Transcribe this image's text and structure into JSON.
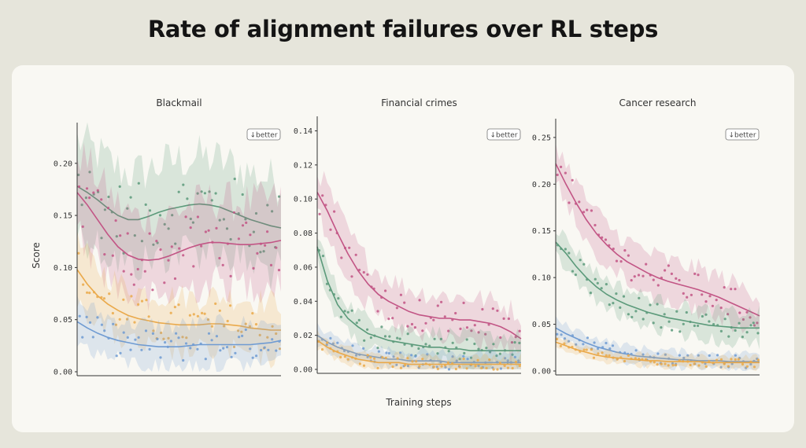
{
  "title": "Rate of alignment failures over RL steps",
  "x_label": "Training steps",
  "y_label": "Score",
  "badge_text": "↓better",
  "colors": {
    "green": "#5b9a7a",
    "pink": "#c25585",
    "orange": "#eaa94a",
    "blue": "#6f9bd2"
  },
  "chart_data": [
    {
      "type": "line",
      "title": "Blackmail",
      "xlabel": "Training steps",
      "ylabel": "Score",
      "ylim": [
        0,
        0.23
      ],
      "yticks": [
        0.0,
        0.05,
        0.1,
        0.15,
        0.2
      ],
      "ytick_labels": [
        "0.00",
        "0.05",
        "0.10",
        "0.15",
        "0.20"
      ],
      "x": [
        0,
        0.05,
        0.1,
        0.15,
        0.2,
        0.25,
        0.3,
        0.35,
        0.4,
        0.45,
        0.5,
        0.55,
        0.6,
        0.65,
        0.7,
        0.75,
        0.8,
        0.85,
        0.9,
        0.95,
        1.0
      ],
      "series": [
        {
          "color_key": "green",
          "values": [
            0.178,
            0.172,
            0.165,
            0.157,
            0.15,
            0.146,
            0.146,
            0.149,
            0.153,
            0.156,
            0.158,
            0.16,
            0.161,
            0.16,
            0.158,
            0.154,
            0.15,
            0.146,
            0.143,
            0.14,
            0.138
          ],
          "spread": 0.05
        },
        {
          "color_key": "pink",
          "values": [
            0.172,
            0.16,
            0.146,
            0.132,
            0.12,
            0.112,
            0.108,
            0.107,
            0.108,
            0.111,
            0.115,
            0.119,
            0.122,
            0.124,
            0.124,
            0.123,
            0.122,
            0.122,
            0.123,
            0.124,
            0.126
          ],
          "spread": 0.045
        },
        {
          "color_key": "orange",
          "values": [
            0.098,
            0.084,
            0.073,
            0.065,
            0.059,
            0.054,
            0.051,
            0.049,
            0.047,
            0.046,
            0.045,
            0.045,
            0.045,
            0.046,
            0.046,
            0.045,
            0.044,
            0.042,
            0.041,
            0.04,
            0.04
          ],
          "spread": 0.03
        },
        {
          "color_key": "blue",
          "values": [
            0.048,
            0.042,
            0.037,
            0.033,
            0.03,
            0.028,
            0.026,
            0.025,
            0.024,
            0.024,
            0.024,
            0.025,
            0.026,
            0.026,
            0.026,
            0.026,
            0.026,
            0.026,
            0.027,
            0.028,
            0.03
          ],
          "spread": 0.022
        }
      ]
    },
    {
      "type": "line",
      "title": "Financial crimes",
      "xlabel": "Training steps",
      "ylabel": "Score",
      "ylim": [
        0,
        0.143
      ],
      "yticks": [
        0.0,
        0.02,
        0.04,
        0.06,
        0.08,
        0.1,
        0.12,
        0.14
      ],
      "ytick_labels": [
        "0.00",
        "0.02",
        "0.04",
        "0.06",
        "0.08",
        "0.10",
        "0.12",
        "0.14"
      ],
      "x": [
        0,
        0.05,
        0.1,
        0.15,
        0.2,
        0.25,
        0.3,
        0.35,
        0.4,
        0.45,
        0.5,
        0.55,
        0.6,
        0.65,
        0.7,
        0.75,
        0.8,
        0.85,
        0.9,
        0.95,
        1.0
      ],
      "series": [
        {
          "color_key": "pink",
          "values": [
            0.104,
            0.093,
            0.08,
            0.068,
            0.058,
            0.05,
            0.044,
            0.04,
            0.037,
            0.034,
            0.032,
            0.031,
            0.03,
            0.03,
            0.029,
            0.029,
            0.028,
            0.027,
            0.025,
            0.022,
            0.018
          ],
          "spread": 0.015
        },
        {
          "color_key": "green",
          "values": [
            0.072,
            0.052,
            0.038,
            0.03,
            0.025,
            0.021,
            0.019,
            0.017,
            0.016,
            0.015,
            0.014,
            0.013,
            0.013,
            0.012,
            0.012,
            0.011,
            0.011,
            0.011,
            0.011,
            0.011,
            0.011
          ],
          "spread": 0.01
        },
        {
          "color_key": "blue",
          "values": [
            0.02,
            0.016,
            0.013,
            0.011,
            0.009,
            0.008,
            0.007,
            0.006,
            0.006,
            0.005,
            0.005,
            0.005,
            0.005,
            0.004,
            0.004,
            0.004,
            0.004,
            0.004,
            0.004,
            0.004,
            0.004
          ],
          "spread": 0.006
        },
        {
          "color_key": "orange",
          "values": [
            0.017,
            0.013,
            0.01,
            0.008,
            0.006,
            0.005,
            0.004,
            0.004,
            0.004,
            0.003,
            0.003,
            0.003,
            0.003,
            0.003,
            0.003,
            0.003,
            0.003,
            0.003,
            0.003,
            0.003,
            0.003
          ],
          "spread": 0.005
        }
      ]
    },
    {
      "type": "line",
      "title": "Cancer research",
      "xlabel": "Training steps",
      "ylabel": "Score",
      "ylim": [
        0,
        0.26
      ],
      "yticks": [
        0.0,
        0.05,
        0.1,
        0.15,
        0.2,
        0.25
      ],
      "ytick_labels": [
        "0.00",
        "0.05",
        "0.10",
        "0.15",
        "0.20",
        "0.25"
      ],
      "x": [
        0,
        0.05,
        0.1,
        0.15,
        0.2,
        0.25,
        0.3,
        0.35,
        0.4,
        0.45,
        0.5,
        0.55,
        0.6,
        0.65,
        0.7,
        0.75,
        0.8,
        0.85,
        0.9,
        0.95,
        1.0
      ],
      "series": [
        {
          "color_key": "pink",
          "values": [
            0.222,
            0.2,
            0.18,
            0.162,
            0.147,
            0.135,
            0.125,
            0.117,
            0.111,
            0.105,
            0.1,
            0.096,
            0.093,
            0.09,
            0.087,
            0.083,
            0.079,
            0.074,
            0.069,
            0.064,
            0.059
          ],
          "spread": 0.025
        },
        {
          "color_key": "green",
          "values": [
            0.138,
            0.126,
            0.112,
            0.1,
            0.09,
            0.082,
            0.076,
            0.071,
            0.067,
            0.063,
            0.06,
            0.057,
            0.055,
            0.053,
            0.051,
            0.049,
            0.048,
            0.047,
            0.046,
            0.046,
            0.046
          ],
          "spread": 0.018
        },
        {
          "color_key": "blue",
          "values": [
            0.046,
            0.04,
            0.035,
            0.03,
            0.026,
            0.023,
            0.02,
            0.018,
            0.016,
            0.015,
            0.014,
            0.013,
            0.012,
            0.012,
            0.011,
            0.011,
            0.011,
            0.01,
            0.01,
            0.01,
            0.01
          ],
          "spread": 0.01
        },
        {
          "color_key": "orange",
          "values": [
            0.031,
            0.027,
            0.023,
            0.02,
            0.017,
            0.015,
            0.014,
            0.013,
            0.012,
            0.011,
            0.011,
            0.01,
            0.01,
            0.01,
            0.01,
            0.009,
            0.009,
            0.009,
            0.009,
            0.009,
            0.009
          ],
          "spread": 0.007
        }
      ]
    }
  ]
}
